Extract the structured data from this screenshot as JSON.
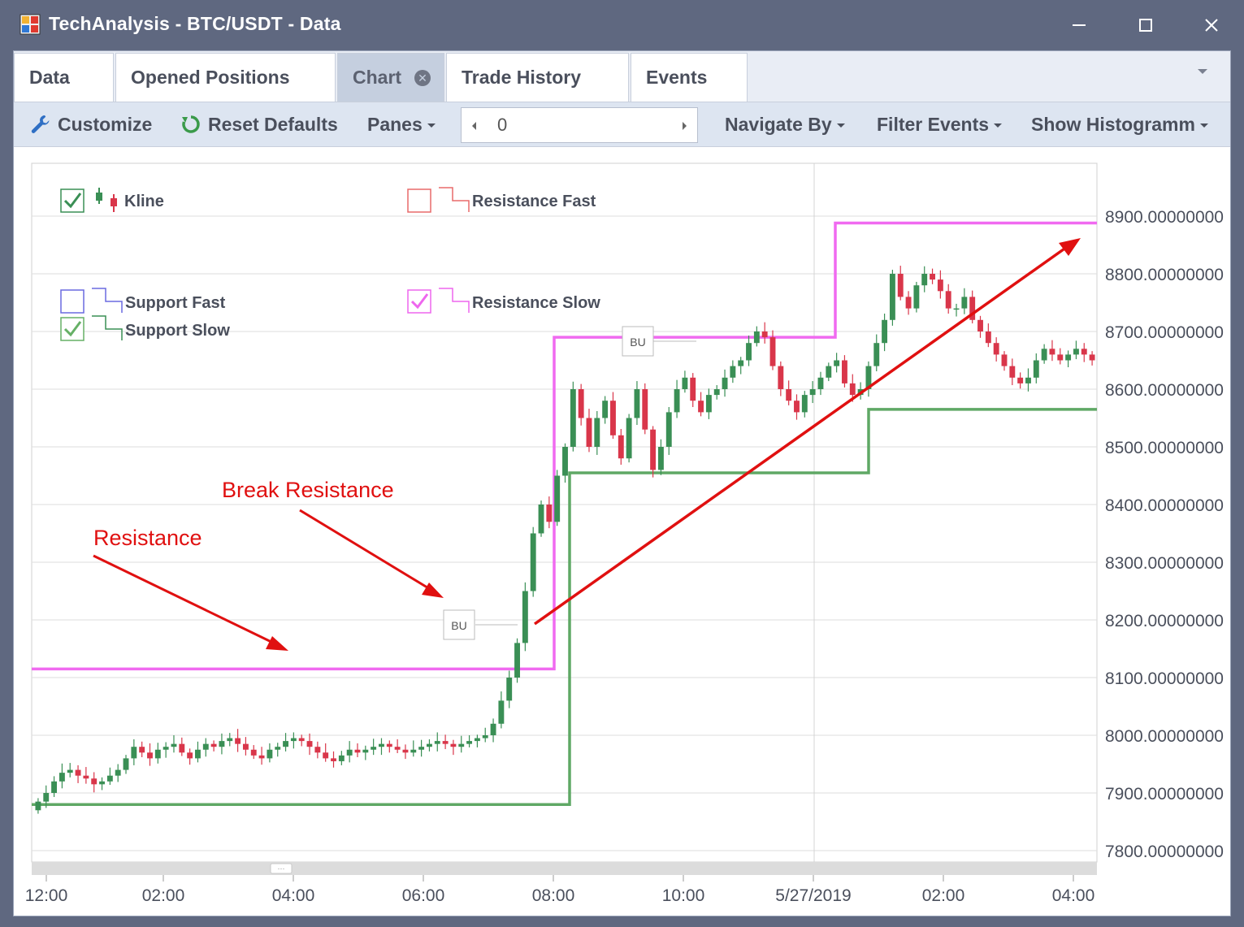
{
  "window": {
    "title": "TechAnalysis - BTC/USDT - Data",
    "app_icon": "chart-app-icon",
    "controls": [
      "minimize-icon",
      "maximize-icon",
      "close-icon"
    ]
  },
  "tabs": [
    {
      "label": "Data",
      "active": false
    },
    {
      "label": "Opened Positions",
      "active": false
    },
    {
      "label": "Chart",
      "active": true,
      "closable": true
    },
    {
      "label": "Trade History",
      "active": false
    },
    {
      "label": "Events",
      "active": false
    }
  ],
  "toolbar": {
    "customize": "Customize",
    "reset_defaults": "Reset Defaults",
    "panes": "Panes",
    "spin_value": "0",
    "navigate_by": "Navigate By",
    "filter_events": "Filter Events",
    "show_histogram": "Show Histogramm"
  },
  "legend": [
    {
      "label": "Kline",
      "checked": true,
      "color": "#3a8f55"
    },
    {
      "label": "Resistance Fast",
      "checked": false,
      "color": "#e86a6a"
    },
    {
      "label": "Support Fast",
      "checked": false,
      "color": "#6a6ae0"
    },
    {
      "label": "Resistance Slow",
      "checked": true,
      "color": "#ee66ee"
    },
    {
      "label": "Support Slow",
      "checked": true,
      "color": "#66b066"
    }
  ],
  "annotations": {
    "resistance": "Resistance",
    "break_resistance": "Break Resistance",
    "event_marker": "BU"
  },
  "chart_data": {
    "type": "candlestick",
    "symbol": "BTC/USDT",
    "y_ticks": [
      "8900.00000000",
      "8800.00000000",
      "8700.00000000",
      "8600.00000000",
      "8500.00000000",
      "8400.00000000",
      "8300.00000000",
      "8200.00000000",
      "8100.00000000",
      "8000.00000000",
      "7900.00000000",
      "7800.00000000"
    ],
    "ylim": [
      7770,
      8985
    ],
    "x_ticks": [
      "12:00",
      "02:00",
      "04:00",
      "06:00",
      "08:00",
      "10:00",
      "5/27/2019",
      "02:00",
      "04:00"
    ],
    "series_close_approx": [
      7885,
      7900,
      7920,
      7935,
      7940,
      7930,
      7925,
      7915,
      7920,
      7930,
      7940,
      7960,
      7980,
      7970,
      7960,
      7975,
      7980,
      7985,
      7970,
      7960,
      7975,
      7985,
      7980,
      7990,
      7995,
      7985,
      7975,
      7965,
      7960,
      7975,
      7980,
      7990,
      7995,
      7990,
      7980,
      7970,
      7960,
      7955,
      7965,
      7975,
      7970,
      7975,
      7980,
      7985,
      7980,
      7975,
      7970,
      7975,
      7980,
      7985,
      7990,
      7985,
      7980,
      7985,
      7990,
      7995,
      8000,
      8020,
      8060,
      8100,
      8160,
      8250,
      8350,
      8400,
      8370,
      8450,
      8500,
      8600,
      8550,
      8500,
      8550,
      8580,
      8520,
      8480,
      8550,
      8600,
      8530,
      8460,
      8500,
      8560,
      8600,
      8620,
      8580,
      8560,
      8590,
      8600,
      8620,
      8640,
      8650,
      8680,
      8700,
      8690,
      8640,
      8600,
      8580,
      8560,
      8590,
      8600,
      8620,
      8640,
      8650,
      8610,
      8590,
      8600,
      8640,
      8680,
      8720,
      8800,
      8760,
      8740,
      8780,
      8800,
      8790,
      8770,
      8740,
      8740,
      8760,
      8720,
      8700,
      8680,
      8660,
      8640,
      8620,
      8610,
      8620,
      8650,
      8670,
      8660,
      8650,
      8660,
      8670,
      8660,
      8650
    ],
    "resistance_slow": [
      {
        "from": "12:00",
        "to": "08:00",
        "value": 8115
      },
      {
        "from": "08:00",
        "to": "5/27/2019",
        "value": 8690
      },
      {
        "from": "5/27/2019",
        "to": "04:00",
        "value": 8888
      }
    ],
    "support_slow": [
      {
        "from": "12:00",
        "to": "08:00",
        "value": 7880
      },
      {
        "from": "08:00",
        "to": "~01:00",
        "value": 8455
      },
      {
        "from": "~01:00",
        "to": "04:00",
        "value": 8565
      }
    ]
  }
}
